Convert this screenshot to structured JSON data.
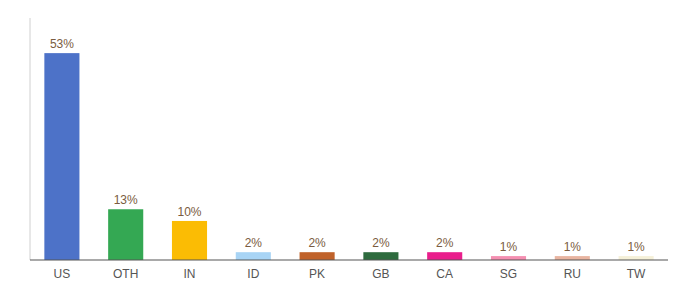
{
  "chart_data": {
    "type": "bar",
    "categories": [
      "US",
      "OTH",
      "IN",
      "ID",
      "PK",
      "GB",
      "CA",
      "SG",
      "RU",
      "TW"
    ],
    "values": [
      53,
      13,
      10,
      2,
      2,
      2,
      2,
      1,
      1,
      1
    ],
    "value_labels": [
      "53%",
      "13%",
      "10%",
      "2%",
      "2%",
      "2%",
      "2%",
      "1%",
      "1%",
      "1%"
    ],
    "colors": [
      "#4d72c8",
      "#34a853",
      "#fbbc04",
      "#a8d4f5",
      "#c0622a",
      "#2e6b3e",
      "#e91e8c",
      "#f48fb1",
      "#e8b4a0",
      "#f5f0d8"
    ],
    "ylim": [
      0,
      62
    ],
    "data_labels": true,
    "tick_labels": "x"
  }
}
